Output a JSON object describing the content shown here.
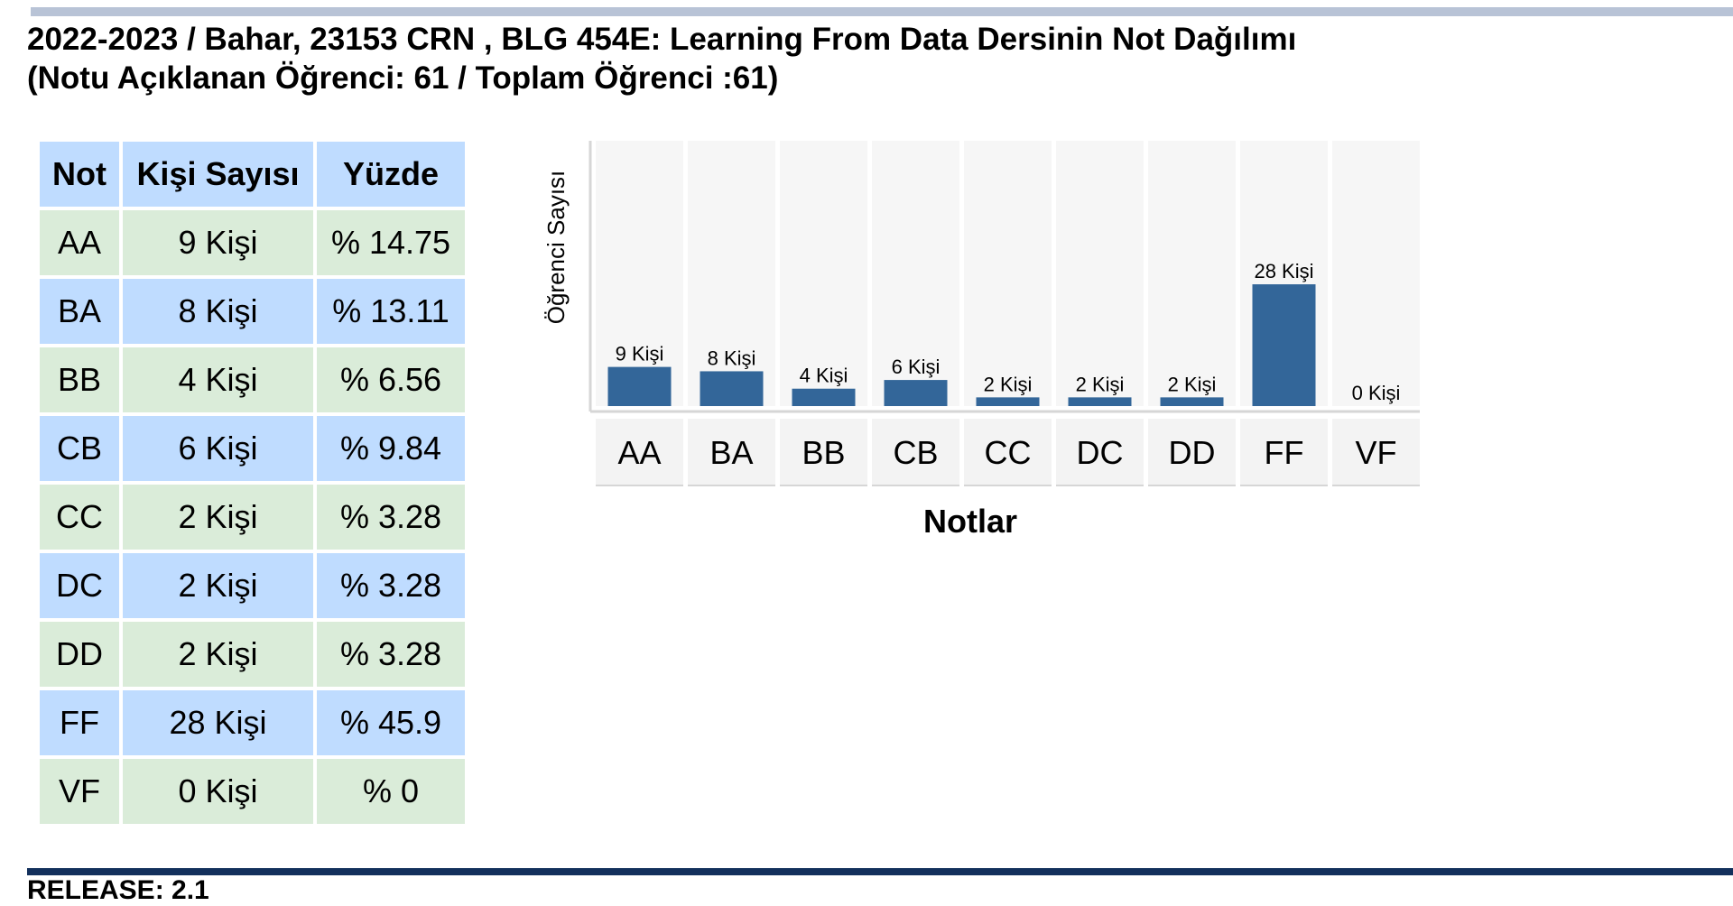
{
  "title": {
    "line1": "2022-2023 / Bahar, 23153 CRN , BLG 454E: Learning From Data Dersinin Not Dağılımı",
    "line2": "(Notu Açıklanan Öğrenci: 61 / Toplam Öğrenci :61)"
  },
  "table": {
    "headers": [
      "Not",
      "Kişi Sayısı",
      "Yüzde"
    ],
    "rows": [
      [
        "AA",
        "9 Kişi",
        "% 14.75"
      ],
      [
        "BA",
        "8 Kişi",
        "% 13.11"
      ],
      [
        "BB",
        "4 Kişi",
        "% 6.56"
      ],
      [
        "CB",
        "6 Kişi",
        "% 9.84"
      ],
      [
        "CC",
        "2 Kişi",
        "% 3.28"
      ],
      [
        "DC",
        "2 Kişi",
        "% 3.28"
      ],
      [
        "DD",
        "2 Kişi",
        "% 3.28"
      ],
      [
        "FF",
        "28 Kişi",
        "% 45.9"
      ],
      [
        "VF",
        "0 Kişi",
        "% 0"
      ]
    ]
  },
  "chart_data": {
    "type": "bar",
    "categories": [
      "AA",
      "BA",
      "BB",
      "CB",
      "CC",
      "DC",
      "DD",
      "FF",
      "VF"
    ],
    "values": [
      9,
      8,
      4,
      6,
      2,
      2,
      2,
      28,
      0
    ],
    "data_labels": [
      "9 Kişi",
      "8 Kişi",
      "4 Kişi",
      "6 Kişi",
      "2 Kişi",
      "2 Kişi",
      "2 Kişi",
      "28 Kişi",
      "0 Kişi"
    ],
    "xlabel": "Notlar",
    "ylabel": "Öğrenci Sayısı",
    "ylim": [
      0,
      61
    ],
    "grid": false,
    "legend": "none",
    "bar_color": "#336699"
  },
  "footer": {
    "text": "RELEASE: 2.1"
  }
}
